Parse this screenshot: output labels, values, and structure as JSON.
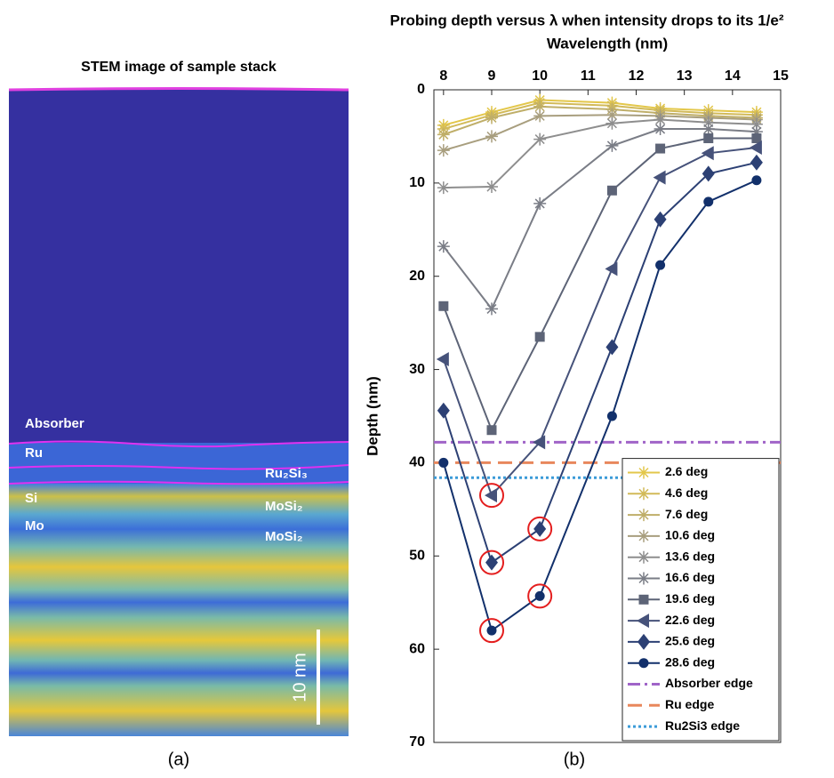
{
  "stem_image": {
    "title": "STEM image of sample stack",
    "layer_labels": [
      "Absorber",
      "Ru",
      "Ru₂Si₃",
      "Si",
      "MoSi₂",
      "Mo",
      "MoSi₂"
    ],
    "scale_bar": "10 nm"
  },
  "captions": [
    "(a)",
    "(b)"
  ],
  "chart_data": {
    "type": "line",
    "title": "Probing depth versus λ when intensity drops to its 1/e²",
    "x_label": "Wavelength (nm)",
    "y_label": "Depth (nm)",
    "x": [
      8,
      9,
      10,
      11.5,
      12.5,
      13.5,
      14.5
    ],
    "xlim": [
      7.8,
      15
    ],
    "xticks": [
      8,
      9,
      10,
      11,
      12,
      13,
      14,
      15
    ],
    "ylim": [
      0,
      70
    ],
    "yticks": [
      0,
      10,
      20,
      30,
      40,
      50,
      60,
      70
    ],
    "y_reversed": true,
    "x_axis_position": "top",
    "grid": false,
    "legend_position": "lower right",
    "series": [
      {
        "name": "2.6 deg",
        "color": "#e3c74a",
        "marker": "asterisk",
        "values": [
          3.8,
          2.4,
          1.1,
          1.4,
          2,
          2.2,
          2.4
        ]
      },
      {
        "name": "4.6 deg",
        "color": "#d2ba58",
        "marker": "asterisk",
        "values": [
          4.2,
          2.7,
          1.4,
          1.7,
          2.2,
          2.5,
          2.7
        ]
      },
      {
        "name": "7.6 deg",
        "color": "#bfae68",
        "marker": "asterisk",
        "values": [
          4.8,
          3,
          1.8,
          2.1,
          2.5,
          2.8,
          3
        ]
      },
      {
        "name": "10.6 deg",
        "color": "#a89e7e",
        "marker": "asterisk",
        "values": [
          6.5,
          5,
          2.8,
          2.7,
          2.8,
          3,
          3.2
        ]
      },
      {
        "name": "13.6 deg",
        "color": "#8e8e8e",
        "marker": "asterisk",
        "values": [
          10.5,
          10.4,
          5.3,
          3.6,
          3.2,
          3.5,
          3.7
        ]
      },
      {
        "name": "16.6 deg",
        "color": "#7a7d86",
        "marker": "asterisk",
        "values": [
          16.8,
          23.5,
          12.2,
          6,
          4.2,
          4.2,
          4.5
        ]
      },
      {
        "name": "19.6 deg",
        "color": "#5d6477",
        "marker": "square",
        "values": [
          23.2,
          36.5,
          26.5,
          10.8,
          6.3,
          5.2,
          5.2
        ]
      },
      {
        "name": "22.6 deg",
        "color": "#46527a",
        "marker": "triangle-left",
        "values": [
          28.9,
          43.5,
          37.8,
          19.2,
          9.4,
          6.8,
          6.2
        ]
      },
      {
        "name": "25.6 deg",
        "color": "#2c4074",
        "marker": "diamond",
        "values": [
          34.4,
          50.7,
          47.1,
          27.6,
          13.9,
          9,
          7.8
        ]
      },
      {
        "name": "28.6 deg",
        "color": "#12306b",
        "marker": "circle",
        "values": [
          40,
          58,
          54.3,
          35,
          18.8,
          12,
          9.7
        ]
      }
    ],
    "reference_lines": [
      {
        "name": "Absorber edge",
        "color": "#a064c8",
        "dash": "dashdot",
        "value": 37.8
      },
      {
        "name": "Ru edge",
        "color": "#e8875c",
        "dash": "dashed",
        "value": 40
      },
      {
        "name": "Ru2Si3 edge",
        "color": "#3b9bd8",
        "dash": "dotted",
        "value": 41.6
      }
    ],
    "highlight": {
      "color": "#e41e1e",
      "points": [
        [
          7,
          1
        ],
        [
          8,
          1
        ],
        [
          8,
          2
        ],
        [
          9,
          1
        ],
        [
          9,
          2
        ]
      ]
    }
  }
}
